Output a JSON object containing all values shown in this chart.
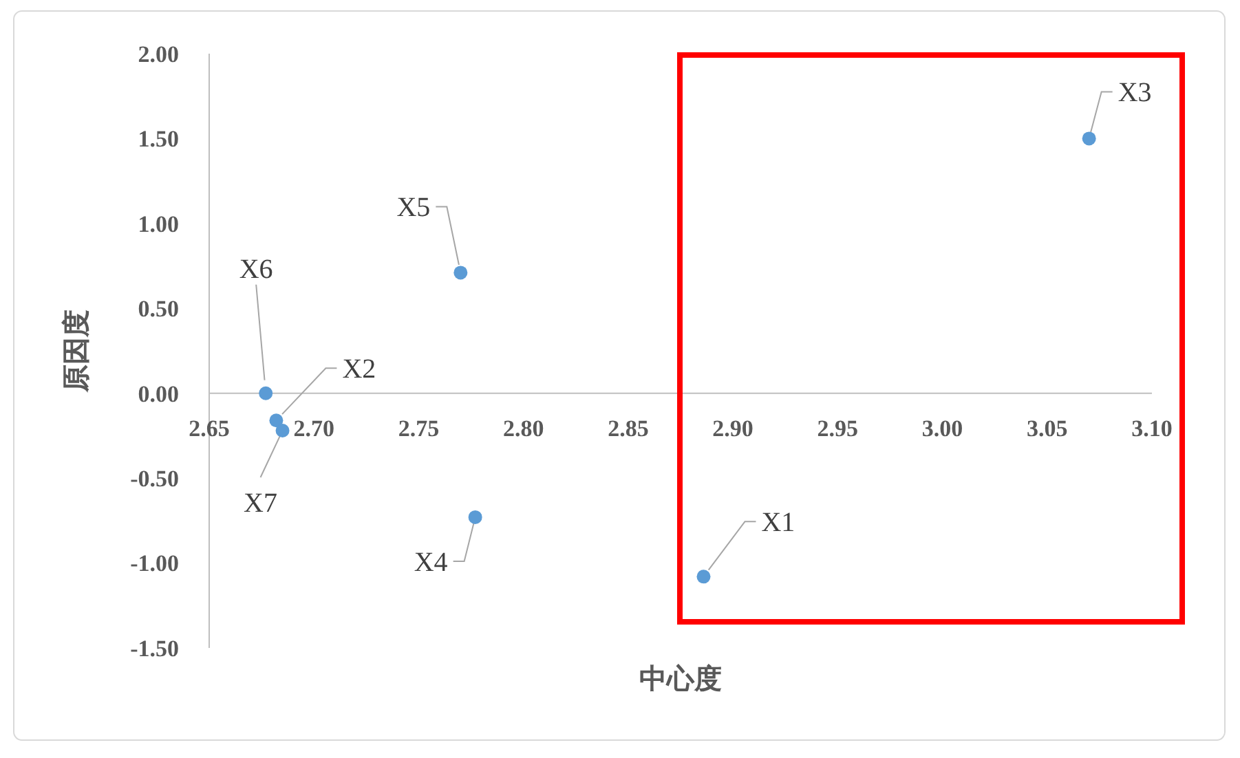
{
  "chart_data": {
    "type": "scatter",
    "xlabel": "中心度",
    "ylabel": "原因度",
    "x": [
      2.886,
      2.682,
      3.07,
      2.777,
      2.77,
      2.677,
      2.685
    ],
    "values": [
      -1.08,
      -0.16,
      1.5,
      -0.73,
      0.71,
      0.0,
      -0.22
    ],
    "value_labels": [
      "X1",
      "X2",
      "X3",
      "X4",
      "X5",
      "X6",
      "X7"
    ],
    "color": "#5b9bd5",
    "marker": "circle",
    "grid": false,
    "xlim": [
      2.65,
      3.1
    ],
    "xticks": [
      2.65,
      {
        "value": 2.7,
        "label": "2.70"
      },
      2.75,
      {
        "value": 2.8,
        "label": "2.80"
      },
      2.85,
      {
        "value": 2.9,
        "label": "2.90"
      },
      2.95,
      {
        "value": 3.0,
        "label": "3.00"
      },
      3.05,
      {
        "value": 3.1,
        "label": "3.10"
      }
    ],
    "ylim": [
      -1.5,
      2
    ],
    "yticks": [
      {
        "value": -1.5,
        "label": "-1.50"
      },
      {
        "value": -1,
        "label": "-1.00"
      },
      {
        "value": -0.5,
        "label": "-0.50"
      },
      {
        "value": 0,
        "label": "0.00"
      },
      {
        "value": 0.5,
        "label": "0.50"
      },
      {
        "value": 1,
        "label": "1.00"
      },
      {
        "value": 1.5,
        "label": "1.50"
      },
      {
        "value": 2,
        "label": "2.00"
      }
    ]
  }
}
